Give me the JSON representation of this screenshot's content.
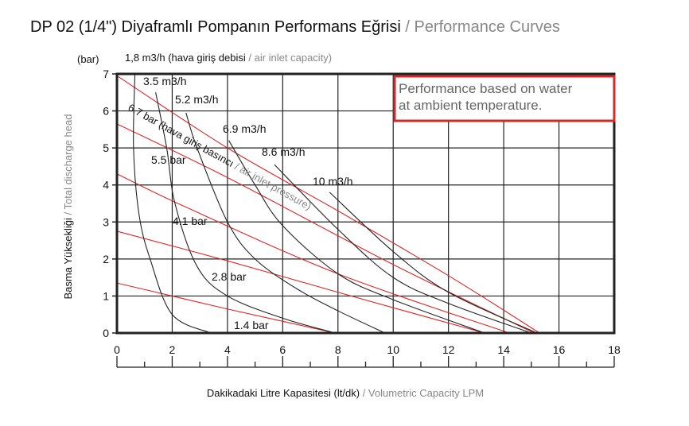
{
  "chart_data": {
    "type": "line",
    "title": "DP 02 (1/4\") Diyaframlı Pompanın Performans Eğrisi",
    "title_en": "/ Performance Curves",
    "xlabel": "Dakikadaki Litre Kapasitesi (lt/dk)",
    "xlabel_en": "/ Volumetric Capacity LPM",
    "ylabel": "Basma Yüksekliği",
    "ylabel_en": "/ Total discharge head",
    "y_unit": "(bar)",
    "xlim": [
      0,
      18
    ],
    "ylim": [
      0,
      7
    ],
    "xticks": [
      "0",
      "2",
      "4",
      "6",
      "8",
      "10",
      "12",
      "14",
      "16",
      "18"
    ],
    "yticks": [
      "0",
      "1",
      "2",
      "3",
      "4",
      "5",
      "6",
      "7"
    ],
    "grid": true,
    "note": [
      "Performance based on water",
      "at ambient temperature."
    ],
    "air_legend": "1,8 m3/h (hava giriş debisi",
    "air_legend_en": "/ air inlet capacity)",
    "pressure_legend": "6.7 bar (hava giriş basıncı",
    "pressure_legend_en": "/ air inlet pressure)",
    "pressure_series": [
      {
        "name": "6.7 bar",
        "label": "",
        "color": "#d42a2a",
        "points": [
          [
            0,
            6.95
          ],
          [
            4,
            5.0
          ],
          [
            8,
            3.3
          ],
          [
            12,
            1.55
          ],
          [
            15.3,
            0
          ]
        ]
      },
      {
        "name": "5.5 bar",
        "label": "5.5 bar",
        "color": "#d42a2a",
        "points": [
          [
            0,
            5.65
          ],
          [
            4,
            4.2
          ],
          [
            10,
            1.85
          ],
          [
            15.1,
            0
          ]
        ]
      },
      {
        "name": "4.1 bar",
        "label": "4.1 bar",
        "color": "#d42a2a",
        "points": [
          [
            0,
            4.3
          ],
          [
            2.5,
            3.4
          ],
          [
            8,
            1.6
          ],
          [
            14.2,
            0
          ]
        ]
      },
      {
        "name": "2.8 bar",
        "label": "2.8 bar",
        "color": "#d42a2a",
        "points": [
          [
            0,
            2.75
          ],
          [
            4,
            1.95
          ],
          [
            8,
            1.1
          ],
          [
            13.3,
            0
          ]
        ]
      },
      {
        "name": "1.4 bar",
        "label": "1.4 bar",
        "color": "#d42a2a",
        "points": [
          [
            0,
            1.35
          ],
          [
            2,
            1.0
          ],
          [
            4,
            0.65
          ],
          [
            7.9,
            0
          ]
        ]
      }
    ],
    "air_series": [
      {
        "name": "1.8 m3/h",
        "label": "",
        "color": "#222222",
        "points": [
          [
            0.65,
            7
          ],
          [
            0.6,
            5
          ],
          [
            0.8,
            3.2
          ],
          [
            1.2,
            2
          ],
          [
            2,
            0.5
          ],
          [
            3.4,
            0
          ]
        ]
      },
      {
        "name": "3.5 m3/h",
        "label": "3.5 m3/h",
        "color": "#222222",
        "points": [
          [
            1.4,
            6.5
          ],
          [
            1.8,
            5
          ],
          [
            2.1,
            3.5
          ],
          [
            2.9,
            1.8
          ],
          [
            4,
            1.0
          ],
          [
            6,
            0.4
          ],
          [
            7.9,
            0
          ]
        ]
      },
      {
        "name": "5.2 m3/h",
        "label": "5.2 m3/h",
        "color": "#222222",
        "points": [
          [
            2.5,
            5.95
          ],
          [
            2.9,
            5
          ],
          [
            4,
            3
          ],
          [
            5,
            2
          ],
          [
            6.5,
            1.2
          ],
          [
            8,
            0.6
          ],
          [
            9.7,
            0
          ]
        ]
      },
      {
        "name": "6.9 m3/h",
        "label": "6.9 m3/h",
        "color": "#222222",
        "points": [
          [
            4.05,
            5.2
          ],
          [
            5,
            4
          ],
          [
            6,
            2.9
          ],
          [
            8,
            1.6
          ],
          [
            10,
            0.9
          ],
          [
            13.3,
            0
          ]
        ]
      },
      {
        "name": "8.6 m3/h",
        "label": "8.6 m3/h",
        "color": "#222222",
        "points": [
          [
            5.7,
            4.55
          ],
          [
            8,
            2.8
          ],
          [
            10,
            1.5
          ],
          [
            12,
            0.8
          ],
          [
            15,
            0
          ]
        ]
      },
      {
        "name": "10 m3/h",
        "label": "10 m3/h",
        "color": "#222222",
        "points": [
          [
            7.7,
            3.8
          ],
          [
            10,
            2.2
          ],
          [
            12,
            1.1
          ],
          [
            15.2,
            0
          ]
        ]
      }
    ]
  }
}
